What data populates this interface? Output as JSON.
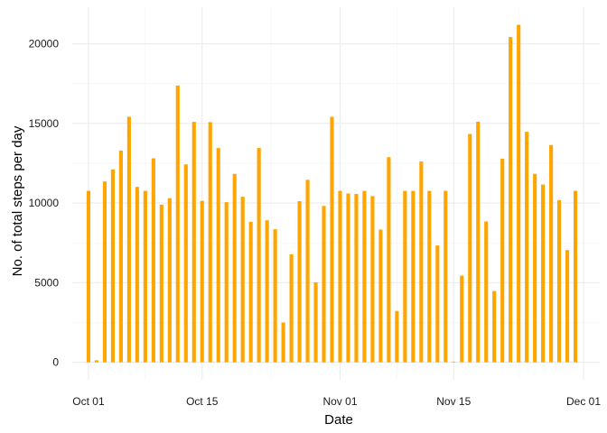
{
  "chart_data": {
    "type": "bar",
    "title": "",
    "xlabel": "Date",
    "ylabel": "No. of total steps per day",
    "bar_color": "#FFA500",
    "grid": true,
    "background": "#FFFFFF",
    "grid_color": "#EBEBEB",
    "xlim": [
      "2012-09-29",
      "2012-12-03"
    ],
    "ylim": [
      -1100,
      22300
    ],
    "x_tick_labels": [
      {
        "date": "2012-10-01",
        "label": "Oct 01"
      },
      {
        "date": "2012-10-15",
        "label": "Oct 15"
      },
      {
        "date": "2012-11-01",
        "label": "Nov 01"
      },
      {
        "date": "2012-11-15",
        "label": "Nov 15"
      },
      {
        "date": "2012-12-01",
        "label": "Dec 01"
      }
    ],
    "y_tick_labels": [
      {
        "value": 0,
        "label": "0"
      },
      {
        "value": 5000,
        "label": "5000"
      },
      {
        "value": 10000,
        "label": "10000"
      },
      {
        "value": 15000,
        "label": "15000"
      },
      {
        "value": 20000,
        "label": "20000"
      }
    ],
    "dates": [
      "2012-10-01",
      "2012-10-02",
      "2012-10-03",
      "2012-10-04",
      "2012-10-05",
      "2012-10-06",
      "2012-10-07",
      "2012-10-08",
      "2012-10-09",
      "2012-10-10",
      "2012-10-11",
      "2012-10-12",
      "2012-10-13",
      "2012-10-14",
      "2012-10-15",
      "2012-10-16",
      "2012-10-17",
      "2012-10-18",
      "2012-10-19",
      "2012-10-20",
      "2012-10-21",
      "2012-10-22",
      "2012-10-23",
      "2012-10-24",
      "2012-10-25",
      "2012-10-26",
      "2012-10-27",
      "2012-10-28",
      "2012-10-29",
      "2012-10-30",
      "2012-10-31",
      "2012-11-01",
      "2012-11-02",
      "2012-11-03",
      "2012-11-04",
      "2012-11-05",
      "2012-11-06",
      "2012-11-07",
      "2012-11-08",
      "2012-11-09",
      "2012-11-10",
      "2012-11-11",
      "2012-11-12",
      "2012-11-13",
      "2012-11-14",
      "2012-11-15",
      "2012-11-16",
      "2012-11-17",
      "2012-11-18",
      "2012-11-19",
      "2012-11-20",
      "2012-11-21",
      "2012-11-22",
      "2012-11-23",
      "2012-11-24",
      "2012-11-25",
      "2012-11-26",
      "2012-11-27",
      "2012-11-28",
      "2012-11-29",
      "2012-11-30"
    ],
    "values": [
      10766,
      126,
      11352,
      12116,
      13294,
      15420,
      11015,
      10766,
      12811,
      9900,
      10304,
      17382,
      12426,
      15098,
      10139,
      15084,
      13452,
      10056,
      11829,
      10395,
      8821,
      13460,
      8918,
      8355,
      2492,
      6778,
      10119,
      11458,
      5018,
      9819,
      15414,
      10766,
      10600,
      10571,
      10766,
      10439,
      8334,
      12883,
      3219,
      10766,
      10766,
      12608,
      10765,
      7336,
      10766,
      41,
      5441,
      14339,
      15110,
      8841,
      4472,
      12787,
      20427,
      21194,
      14478,
      11834,
      11162,
      13646,
      10183,
      7047,
      10766
    ]
  }
}
